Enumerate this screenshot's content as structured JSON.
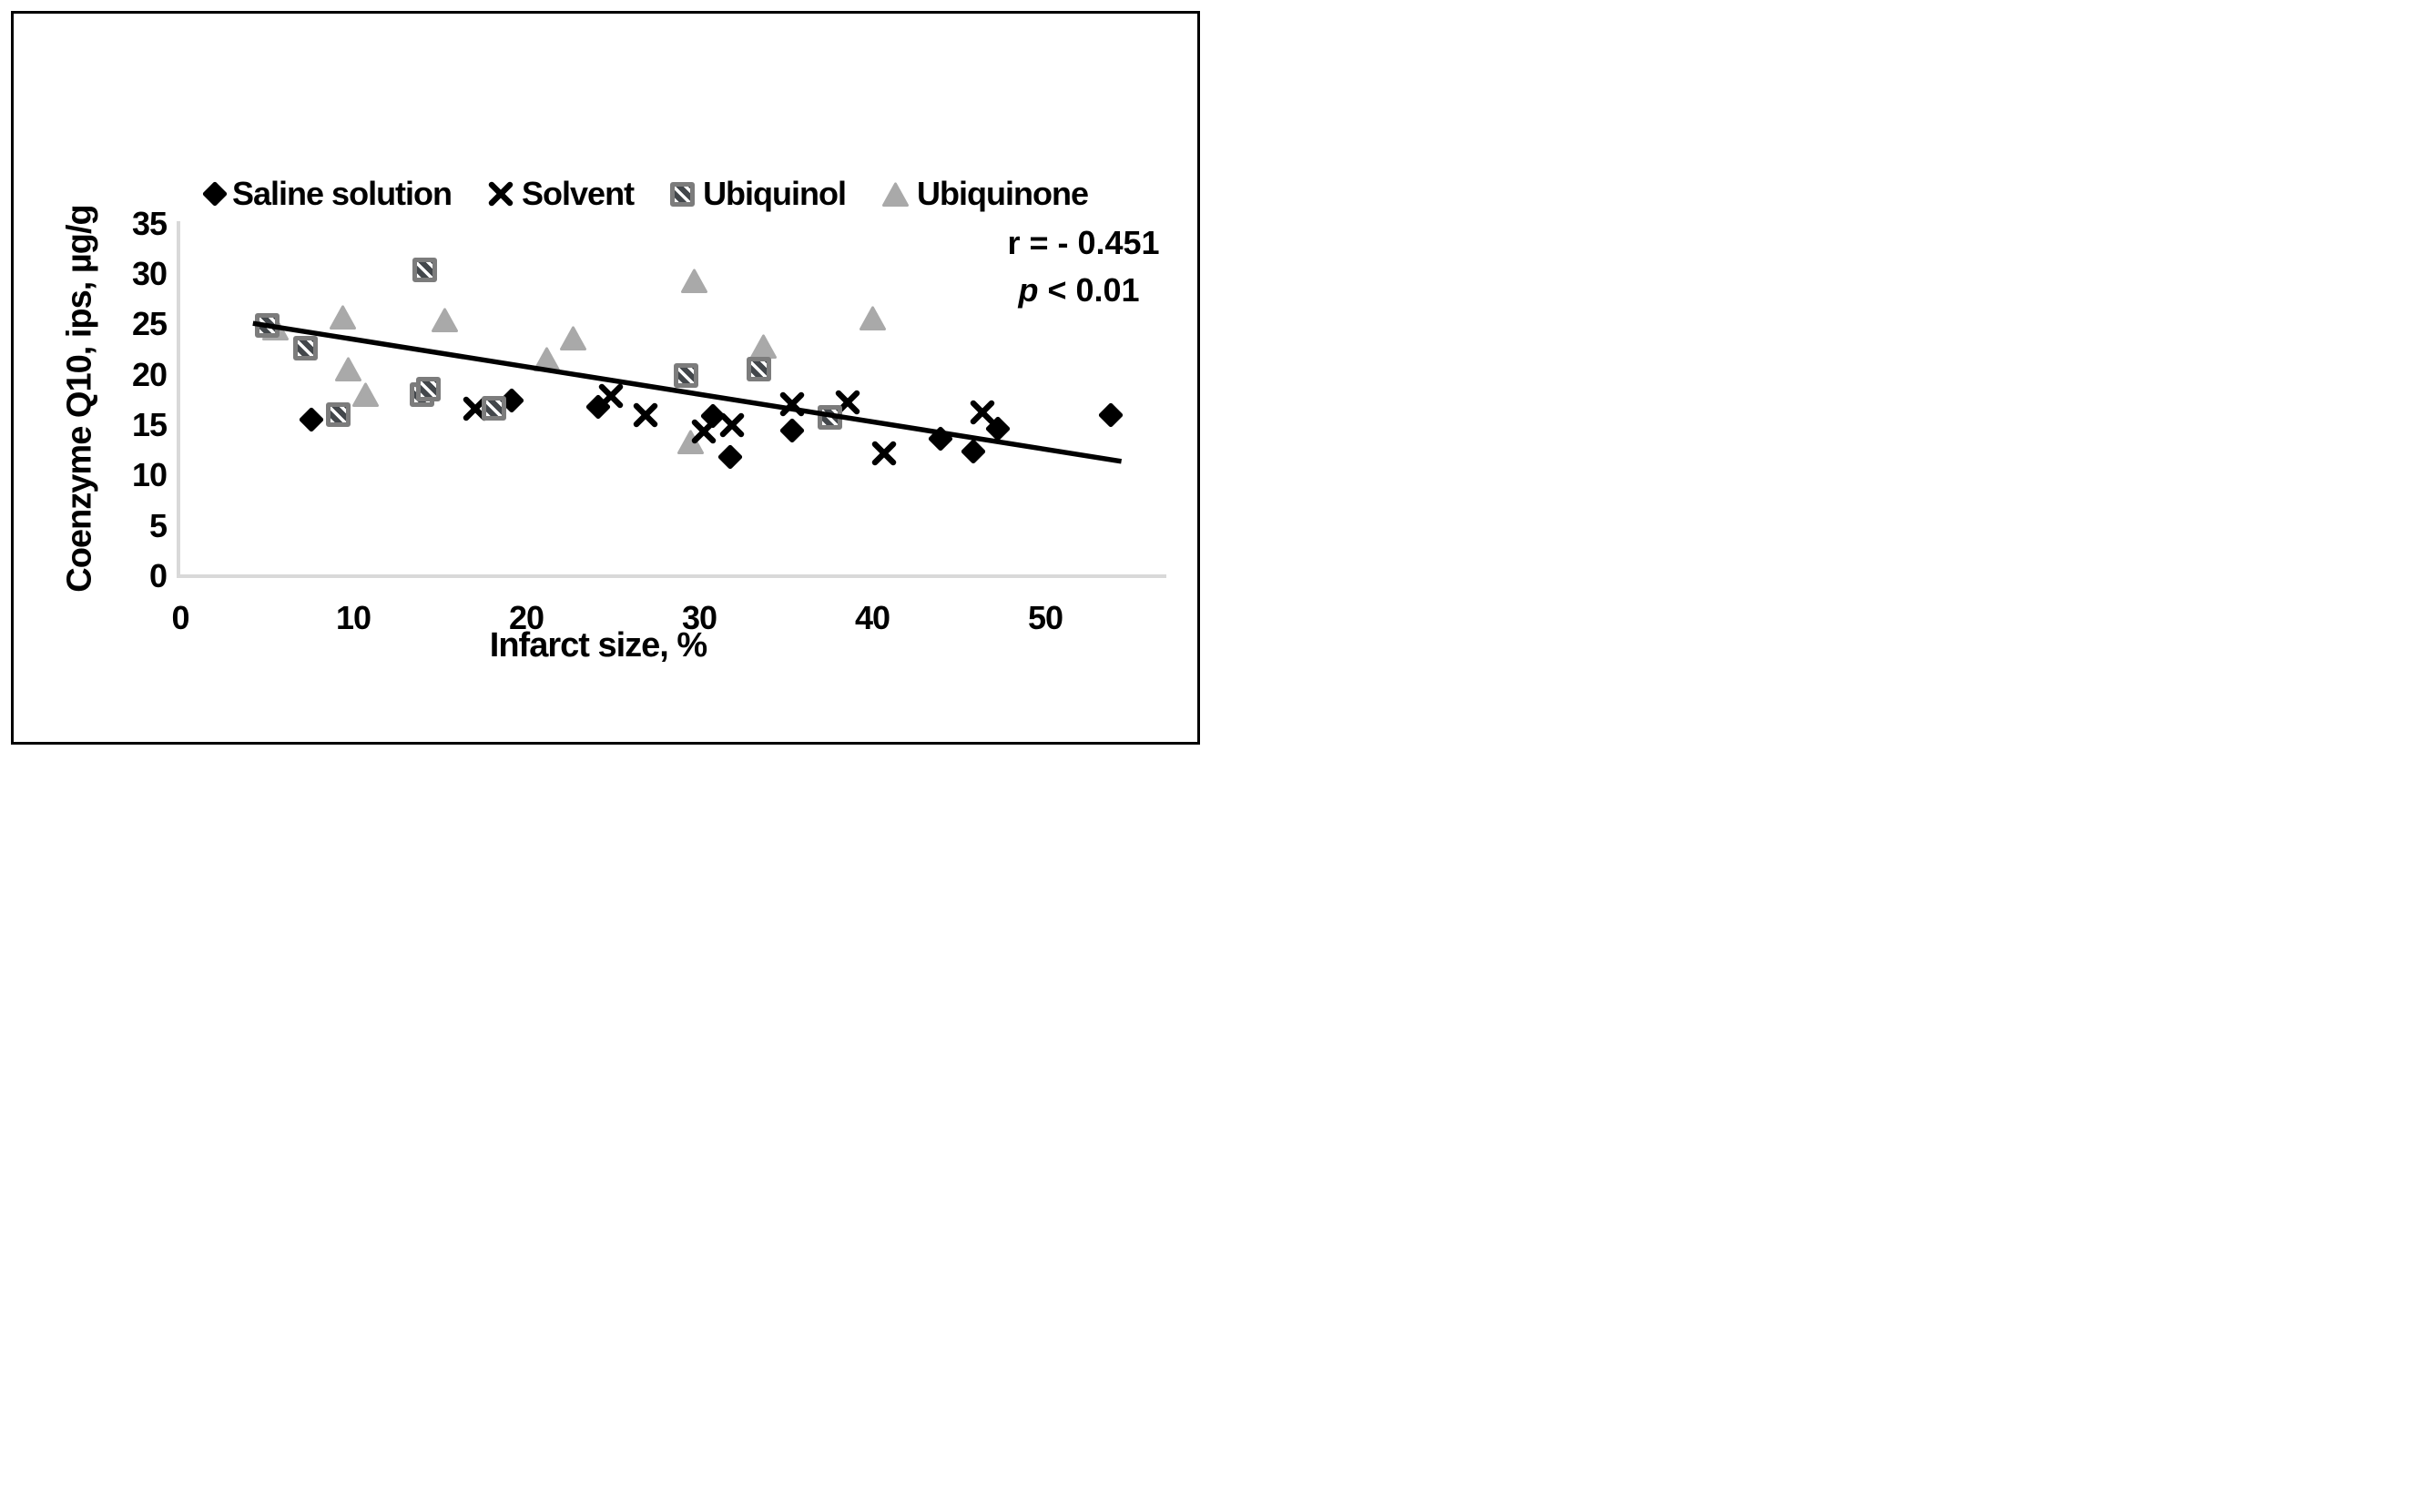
{
  "chart_data": {
    "type": "scatter",
    "xlabel": "Infarct size, %",
    "ylabel": "Coenzyme Q10, ips, µg/g",
    "xlim": [
      0,
      57
    ],
    "ylim": [
      0,
      35
    ],
    "x_ticks": [
      0,
      10,
      20,
      30,
      40,
      50
    ],
    "y_ticks": [
      0,
      5,
      10,
      15,
      20,
      25,
      30,
      35
    ],
    "grid": false,
    "legend_position": "top",
    "axis_color": "#d9d9d9",
    "series": [
      {
        "name": "Saline solution",
        "marker": "diamond",
        "color": "#000000",
        "points": [
          [
            7.8,
            15.2
          ],
          [
            19.4,
            17.1
          ],
          [
            24.4,
            16.4
          ],
          [
            31.0,
            15.5
          ],
          [
            32.0,
            11.5
          ],
          [
            35.6,
            14.1
          ],
          [
            44.2,
            13.3
          ],
          [
            46.1,
            12.0
          ],
          [
            47.5,
            14.3
          ],
          [
            54.0,
            15.6
          ]
        ]
      },
      {
        "name": "Solvent",
        "marker": "x",
        "color": "#000000",
        "points": [
          [
            17.1,
            16.6
          ],
          [
            24.9,
            17.9
          ],
          [
            26.9,
            16.0
          ],
          [
            30.3,
            14.4
          ],
          [
            31.9,
            15.0
          ],
          [
            35.4,
            17.1
          ],
          [
            38.6,
            17.3
          ],
          [
            40.7,
            12.2
          ],
          [
            46.4,
            16.3
          ]
        ]
      },
      {
        "name": "Ubiquinol",
        "marker": "hatched-square",
        "color": "#43474b",
        "border_color": "#7c7c7c",
        "points": [
          [
            5.1,
            24.8
          ],
          [
            7.3,
            22.6
          ],
          [
            9.2,
            16.0
          ],
          [
            14.0,
            18.0
          ],
          [
            14.2,
            30.4
          ],
          [
            14.4,
            18.5
          ],
          [
            18.2,
            16.6
          ],
          [
            29.3,
            19.9
          ],
          [
            33.5,
            20.5
          ],
          [
            37.6,
            15.7
          ]
        ]
      },
      {
        "name": "Ubiquinone",
        "marker": "triangle",
        "color": "#a9a9a9",
        "points": [
          [
            5.5,
            24.6
          ],
          [
            9.4,
            25.7
          ],
          [
            9.7,
            20.5
          ],
          [
            10.7,
            18.0
          ],
          [
            15.3,
            25.4
          ],
          [
            21.2,
            21.5
          ],
          [
            22.7,
            23.6
          ],
          [
            29.5,
            13.3
          ],
          [
            29.7,
            29.3
          ],
          [
            33.7,
            22.8
          ],
          [
            40.0,
            25.6
          ]
        ]
      }
    ],
    "trendline": {
      "x1": 4.2,
      "y1": 25.1,
      "x2": 54.4,
      "y2": 11.4,
      "color": "#000000"
    },
    "annotation": {
      "r_text": "r = - 0.451",
      "p_prefix": "p",
      "p_rest": " < 0.01"
    }
  }
}
